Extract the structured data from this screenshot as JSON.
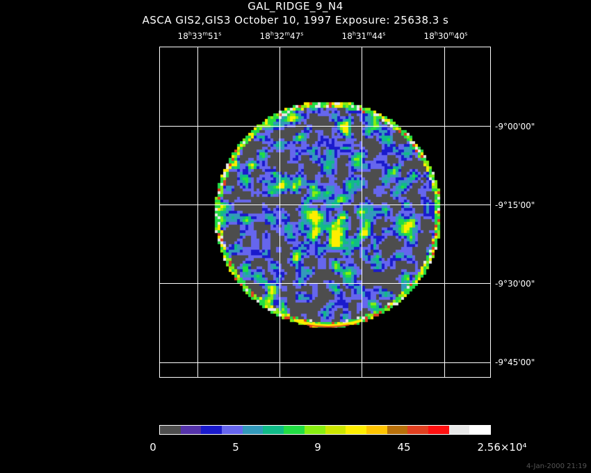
{
  "title": "GAL_RIDGE_9_N4",
  "subtitle": "ASCA GIS2,GIS3 October 10, 1997 Exposure: 25638.3 s",
  "ra_labels": [
    {
      "h": "18",
      "m": "33",
      "s": "51"
    },
    {
      "h": "18",
      "m": "32",
      "s": "47"
    },
    {
      "h": "18",
      "m": "31",
      "s": "44"
    },
    {
      "h": "18",
      "m": "30",
      "s": "40"
    }
  ],
  "dec_labels": [
    "-9°00'00\"",
    "-9°15'00\"",
    "-9°30'00\"",
    "-9°45'00\""
  ],
  "colorbar": {
    "colors": [
      "#4d4d4d",
      "#5533aa",
      "#1a1acc",
      "#6666ee",
      "#3399bb",
      "#11bb88",
      "#22dd44",
      "#88ee11",
      "#cce600",
      "#ffee00",
      "#ffc400",
      "#b8700a",
      "#e04020",
      "#ff1010",
      "#e8e8e8",
      "#ffffff"
    ],
    "labels": [
      "0",
      "5",
      "9",
      "45",
      "2.56×10⁴"
    ]
  },
  "timestamp": "4-Jan-2000 21:19"
}
